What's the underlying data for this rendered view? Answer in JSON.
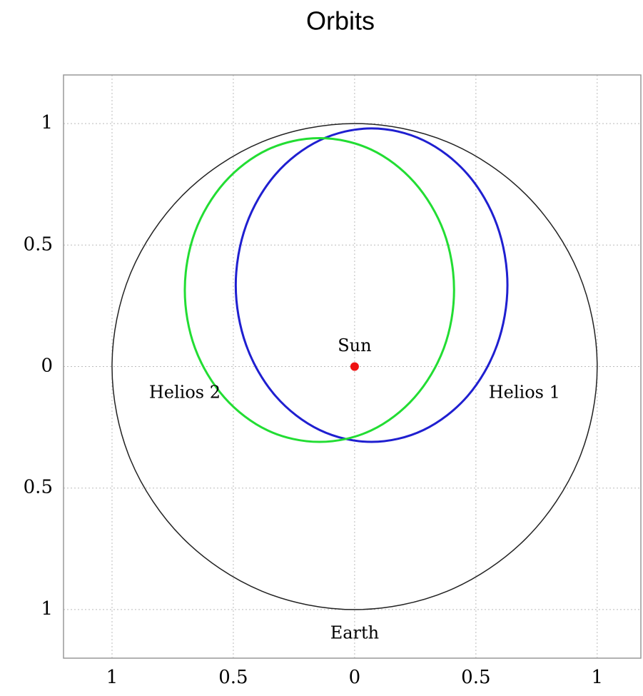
{
  "chart_data": {
    "type": "line",
    "title": "Orbits",
    "xlim": [
      -1.2,
      1.18
    ],
    "ylim": [
      -1.2,
      1.2
    ],
    "xticks": [
      {
        "value": -1,
        "label": "1"
      },
      {
        "value": -0.5,
        "label": "0.5"
      },
      0,
      0.5,
      1
    ],
    "yticks": [
      {
        "value": -1,
        "label": "1"
      },
      {
        "value": -0.5,
        "label": "0.5"
      },
      0,
      0.5,
      1
    ],
    "grid": true,
    "series": [
      {
        "name": "Earth",
        "color": "#222222",
        "x": [
          1,
          0.924,
          0.707,
          0.383,
          0,
          -0.383,
          -0.707,
          -0.924,
          -1,
          -0.924,
          -0.707,
          -0.383,
          0,
          0.383,
          0.707,
          0.924
        ],
        "values": [
          0,
          0.383,
          0.707,
          0.924,
          1,
          0.924,
          0.707,
          0.383,
          0,
          -0.383,
          -0.707,
          -0.924,
          -1,
          -0.924,
          -0.707,
          -0.383
        ]
      },
      {
        "name": "Helios 1",
        "color": "#1f1fd0",
        "x": [
          0.63,
          0.587,
          0.466,
          0.284,
          0.07,
          -0.144,
          -0.326,
          -0.447,
          -0.49,
          -0.447,
          -0.326,
          -0.144,
          0.07,
          0.284,
          0.466,
          0.587
        ],
        "values": [
          0.335,
          0.582,
          0.791,
          0.931,
          0.98,
          0.931,
          0.791,
          0.582,
          0.335,
          0.088,
          -0.121,
          -0.261,
          -0.31,
          -0.261,
          -0.121,
          0.088
        ]
      },
      {
        "name": "Helios 2",
        "color": "#22dd33",
        "x": [
          0.41,
          0.368,
          0.247,
          0.068,
          -0.145,
          -0.358,
          -0.537,
          -0.658,
          -0.7,
          -0.658,
          -0.537,
          -0.358,
          -0.145,
          0.068,
          0.247,
          0.368
        ],
        "values": [
          0.315,
          0.554,
          0.757,
          0.893,
          0.94,
          0.893,
          0.757,
          0.554,
          0.315,
          0.076,
          -0.127,
          -0.263,
          -0.31,
          -0.263,
          -0.127,
          0.076
        ]
      }
    ],
    "markers": [
      {
        "name": "Sun",
        "x": 0,
        "y": 0,
        "color": "#ee1111"
      }
    ]
  }
}
